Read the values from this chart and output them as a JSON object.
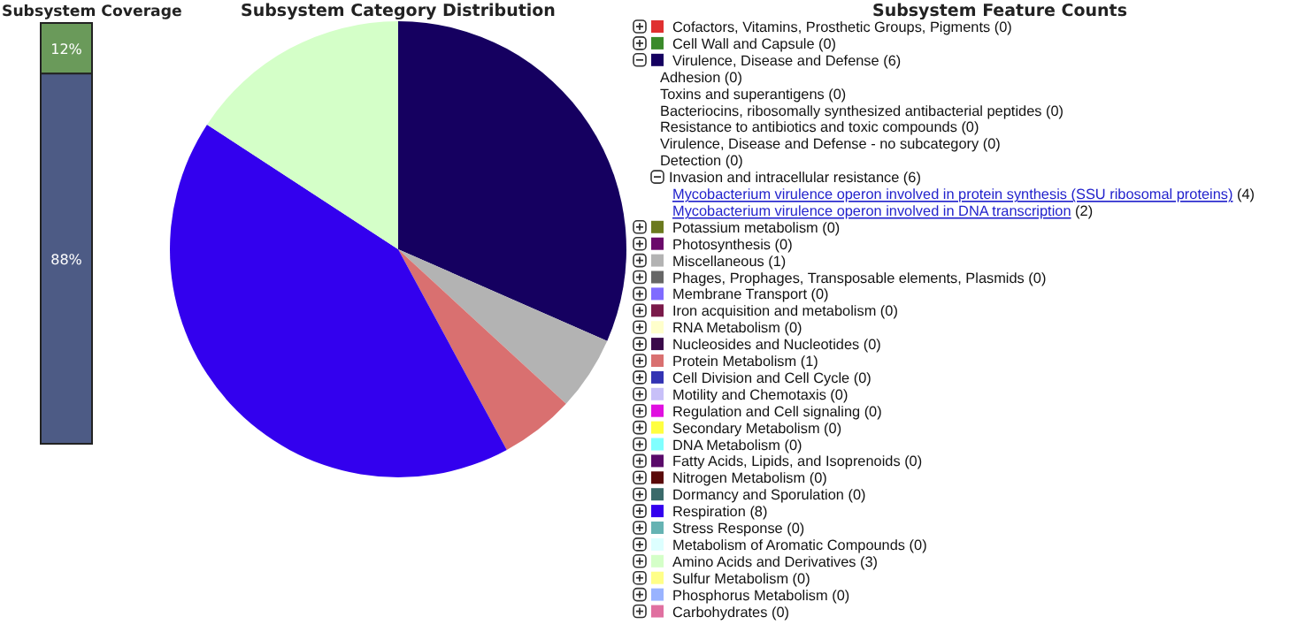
{
  "chart_data": [
    {
      "type": "bar",
      "title": "Subsystem Coverage",
      "categories": [
        null
      ],
      "stacked": true,
      "series": [
        {
          "color": "#4d5b85",
          "values": [
            88
          ],
          "value_labels": [
            "88%"
          ]
        },
        {
          "color": "#6a9a5a",
          "values": [
            12
          ],
          "value_labels": [
            "12%"
          ]
        }
      ]
    },
    {
      "type": "pie",
      "title": "Subsystem Category Distribution",
      "legend_title": "Subsystem Feature Counts",
      "legend": "right",
      "categories": [
        "Cofactors, Vitamins, Prosthetic Groups, Pigments (0)",
        "Cell Wall and Capsule (0)",
        "Virulence, Disease and Defense (6)",
        "Potassium metabolism (0)",
        "Photosynthesis (0)",
        "Miscellaneous (1)",
        "Phages, Prophages, Transposable elements, Plasmids (0)",
        "Membrane Transport (0)",
        "Iron acquisition and metabolism (0)",
        "RNA Metabolism (0)",
        "Nucleosides and Nucleotides (0)",
        "Protein Metabolism (1)",
        "Cell Division and Cell Cycle (0)",
        "Motility and Chemotaxis (0)",
        "Regulation and Cell signaling (0)",
        "Secondary Metabolism (0)",
        "DNA Metabolism (0)",
        "Fatty Acids, Lipids, and Isoprenoids (0)",
        "Nitrogen Metabolism (0)",
        "Dormancy and Sporulation (0)",
        "Respiration (8)",
        "Stress Response (0)",
        "Metabolism of Aromatic Compounds (0)",
        "Amino Acids and Derivatives (3)",
        "Sulfur Metabolism (0)",
        "Phosphorus Metabolism (0)",
        "Carbohydrates (0)"
      ],
      "values": [
        0,
        0,
        6,
        0,
        0,
        1,
        0,
        0,
        0,
        0,
        0,
        1,
        0,
        0,
        0,
        0,
        0,
        0,
        0,
        0,
        8,
        0,
        0,
        3,
        0,
        0,
        0
      ],
      "colors": [
        "#e03030",
        "#3a8a2a",
        "#150060",
        "#6b7a1f",
        "#6a0a6a",
        "#b3b3b3",
        "#666666",
        "#7f6bff",
        "#7a1a4a",
        "#ffffcc",
        "#3a0a4a",
        "#d97070",
        "#3333b3",
        "#c8c0f8",
        "#e010e0",
        "#ffff40",
        "#80ffff",
        "#5a0a6a",
        "#5a0a0a",
        "#3a6a6a",
        "#3300ee",
        "#66b3b3",
        "#ddffff",
        "#d4ffc8",
        "#ffff88",
        "#99b3ff",
        "#e070a0"
      ],
      "annotations": [
        "Adhesion (0)",
        "Toxins and superantigens (0)",
        "Bacteriocins, ribosomally synthesized antibacterial peptides (0)",
        "Resistance to antibiotics and toxic compounds (0)",
        "Virulence, Disease and Defense - no subcategory (0)",
        "Detection (0)",
        "Invasion and intracellular resistance (6)",
        "Mycobacterium virulence operon involved in protein synthesis (SSU ribosomal proteins) (4)",
        "Mycobacterium virulence operon involved in DNA transcription (2)"
      ]
    }
  ]
}
